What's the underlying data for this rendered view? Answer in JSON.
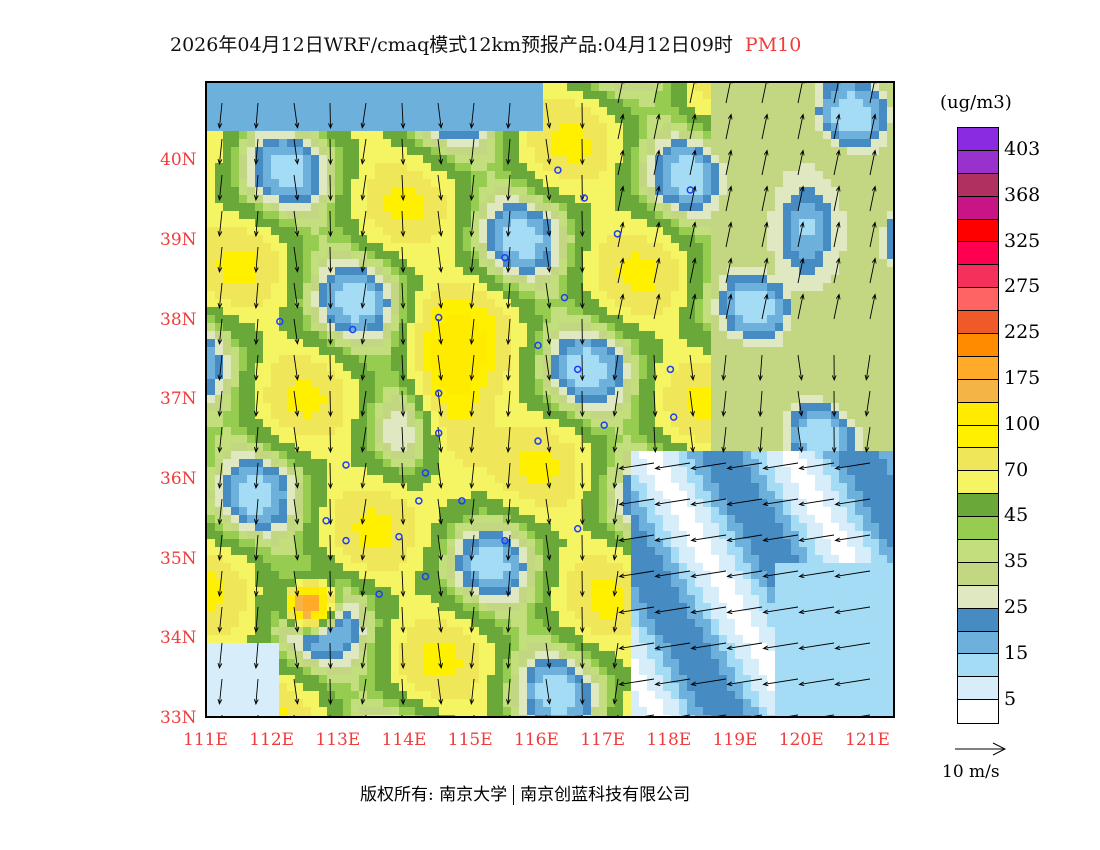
{
  "title": {
    "text": "2026年04月12日WRF/cmaq模式12km预报产品:04月12日09时",
    "species": "PM10"
  },
  "map": {
    "lat_labels": [
      "40N",
      "39N",
      "38N",
      "37N",
      "36N",
      "35N",
      "34N",
      "33N"
    ],
    "lon_labels": [
      "111E",
      "112E",
      "113E",
      "114E",
      "115E",
      "116E",
      "117E",
      "118E",
      "119E",
      "120E",
      "121E"
    ],
    "extent": {
      "lon": [
        111,
        121.4
      ],
      "lat": [
        33,
        40.98
      ]
    }
  },
  "legend": {
    "unit": "(ug/m3)",
    "colors": [
      "#8a2be2",
      "#9932cc",
      "#b03060",
      "#c71585",
      "#ff0000",
      "#ff0050",
      "#f5305a",
      "#ff6464",
      "#f05a28",
      "#ff8c00",
      "#ffaa28",
      "#f5b446",
      "#ffeb00",
      "#fff000",
      "#f0e65a",
      "#f5f564",
      "#6aa83a",
      "#96cd50",
      "#c3df7d",
      "#c3d782",
      "#dfe8c0",
      "#468cc3",
      "#6eb0dc",
      "#a5dcf5",
      "#d7eefa",
      "#ffffff"
    ],
    "labels": [
      "403",
      "368",
      "325",
      "275",
      "225",
      "175",
      "100",
      "70",
      "45",
      "35",
      "25",
      "15",
      "5"
    ],
    "vector_label": "10 m/s"
  },
  "footer": {
    "left": "版权所有: 南京大学",
    "right": "南京创蓝科技有限公司"
  }
}
